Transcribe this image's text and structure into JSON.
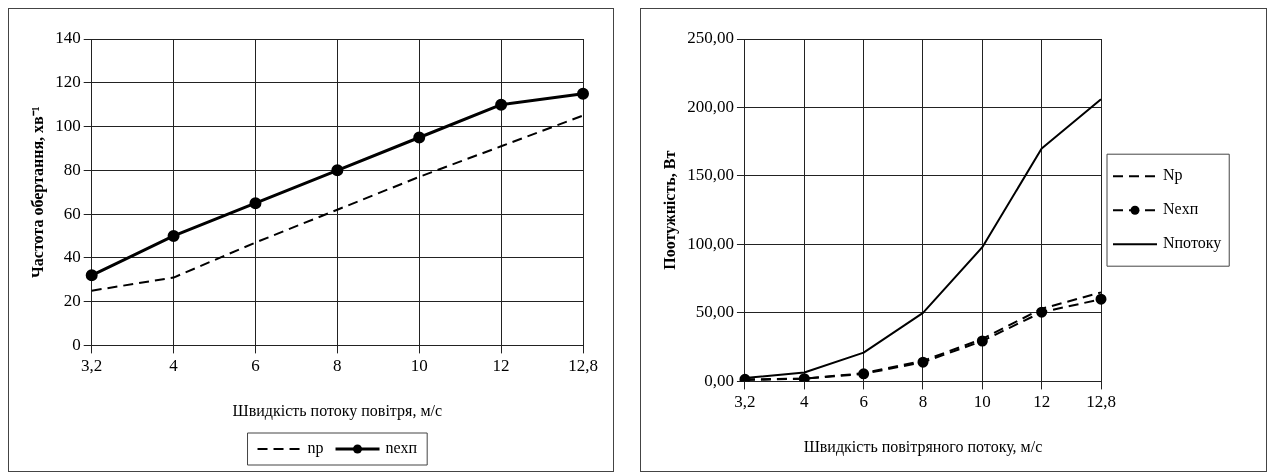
{
  "chart_data": [
    {
      "type": "line",
      "xlabel": "Швидкість потоку повітря, м/с",
      "ylabel": "Частота обертання, хв⁻¹",
      "categories": [
        "3,2",
        "4",
        "6",
        "8",
        "10",
        "12",
        "12,8"
      ],
      "ylim": [
        0,
        140
      ],
      "yticks": [
        0,
        20,
        40,
        60,
        80,
        100,
        120,
        140
      ],
      "grid": true,
      "legend": "bottom",
      "series": [
        {
          "name": "np",
          "color": "#000000",
          "line_style": "dashed",
          "marker": "none",
          "values": [
            25,
            31,
            47,
            62,
            77,
            91,
            105
          ]
        },
        {
          "name": "nexп",
          "color": "#000000",
          "line_style": "solid",
          "marker": "circle",
          "values": [
            32,
            50,
            65,
            80,
            95,
            110,
            115
          ]
        }
      ]
    },
    {
      "type": "line",
      "xlabel": "Швидкість повітряного потоку, м/с",
      "ylabel": "Поотужність, Вт",
      "categories": [
        "3,2",
        "4",
        "6",
        "8",
        "10",
        "12",
        "12,8"
      ],
      "ylim": [
        0,
        250
      ],
      "yticks": [
        {
          "value": 0,
          "label": "0,00"
        },
        {
          "value": 50,
          "label": "50,00"
        },
        {
          "value": 100,
          "label": "100,00"
        },
        {
          "value": 150,
          "label": "150,00"
        },
        {
          "value": 200,
          "label": "200,00"
        },
        {
          "value": 250,
          "label": "250,00"
        }
      ],
      "grid": true,
      "legend": "right",
      "series": [
        {
          "name": "Np",
          "color": "#000000",
          "line_style": "dashed",
          "marker": "none",
          "values": [
            1,
            2,
            6,
            15,
            31,
            53,
            65
          ]
        },
        {
          "name": "Nexп",
          "color": "#000000",
          "line_style": "dashed",
          "marker": "circle",
          "values": [
            1.5,
            2,
            5.5,
            14,
            29.5,
            50.5,
            60
          ]
        },
        {
          "name": "Nпотоку",
          "color": "#000000",
          "line_style": "solid",
          "marker": "none",
          "values": [
            2.5,
            6.5,
            21,
            50,
            98,
            170,
            206
          ]
        }
      ]
    }
  ]
}
